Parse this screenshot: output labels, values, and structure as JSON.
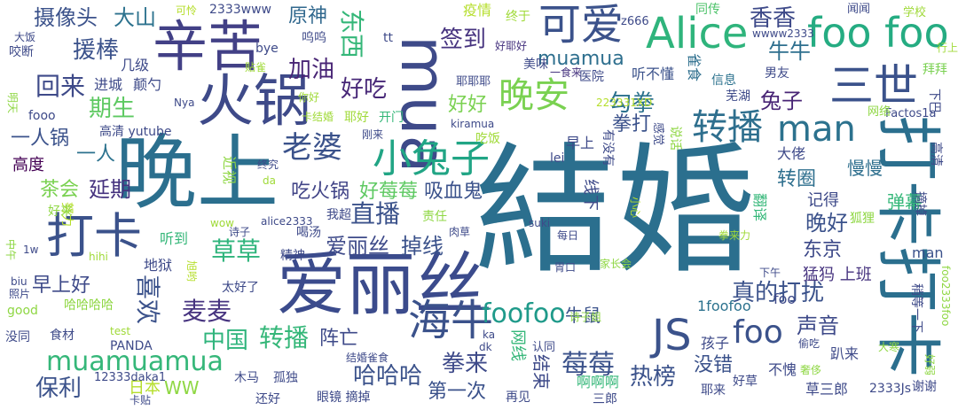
{
  "cloud": {
    "words": [
      {
        "text": "結婚",
        "color": "#2b6f8e",
        "rot": 0
      },
      {
        "text": "晚上",
        "color": "#2b6f8e",
        "rot": 0
      },
      {
        "text": "打卡打卡",
        "color": "#2b6f8e",
        "rot": 90
      },
      {
        "text": "爱丽丝",
        "color": "#3b4b8c",
        "rot": 0
      },
      {
        "text": "火锅",
        "color": "#3e4a89",
        "rot": 0
      },
      {
        "text": "辛苦",
        "color": "#424086",
        "rot": 0
      },
      {
        "text": "mua",
        "color": "#3e4a89",
        "rot": 90
      },
      {
        "text": "可爱",
        "color": "#3b528b",
        "rot": 0
      },
      {
        "text": "Alice",
        "color": "#2fb47c",
        "rot": 0
      },
      {
        "text": "foo foo",
        "color": "#25ac82",
        "rot": 0
      },
      {
        "text": "三世",
        "color": "#3b528b",
        "rot": 0
      },
      {
        "text": "打卡",
        "color": "#3b528b",
        "rot": 0
      },
      {
        "text": "晚安",
        "color": "#7ad151",
        "rot": 0
      },
      {
        "text": "转播",
        "color": "#2e6f8e",
        "rot": 0
      },
      {
        "text": "man",
        "color": "#2c728e",
        "rot": 0
      },
      {
        "text": "海牛",
        "color": "#3b528b",
        "rot": 0
      },
      {
        "text": "JS",
        "color": "#3b528b",
        "rot": 0
      },
      {
        "text": "小兔子",
        "color": "#21a585",
        "rot": 0
      },
      {
        "text": "老婆",
        "color": "#3b528b",
        "rot": 0
      },
      {
        "text": "foofoo",
        "color": "#1f9a8a",
        "rot": 0
      },
      {
        "text": "foo",
        "color": "#3b528b",
        "rot": 0
      },
      {
        "text": "muamuamua",
        "color": "#35b779",
        "rot": 0
      },
      {
        "text": "香香",
        "color": "#3e4a89",
        "rot": 0
      },
      {
        "text": "签到",
        "color": "#46337f",
        "rot": 0
      },
      {
        "text": "muamua",
        "color": "#2e6f8e",
        "rot": 0
      },
      {
        "text": "加油",
        "color": "#482475",
        "rot": 0
      },
      {
        "text": "东西",
        "color": "#35b779",
        "rot": 90
      },
      {
        "text": "好吃",
        "color": "#482878",
        "rot": 0
      },
      {
        "text": "回来",
        "color": "#3e4a89",
        "rot": 0
      },
      {
        "text": "援棒",
        "color": "#3b528b",
        "rot": 0
      },
      {
        "text": "摄像头",
        "color": "#3b528b",
        "rot": 0
      },
      {
        "text": "大山",
        "color": "#2c728e",
        "rot": 0
      },
      {
        "text": "原神",
        "color": "#31688e",
        "rot": 0
      },
      {
        "text": "期生",
        "color": "#5ec962",
        "rot": 0
      },
      {
        "text": "勾拳",
        "color": "#2c728e",
        "rot": 0
      },
      {
        "text": "牛牛",
        "color": "#2e6f8e",
        "rot": 0
      },
      {
        "text": "兔子",
        "color": "#482475",
        "rot": 0
      },
      {
        "text": "拳打",
        "color": "#3b528b",
        "rot": 0
      },
      {
        "text": "好好",
        "color": "#7ad151",
        "rot": 0
      },
      {
        "text": "直播",
        "color": "#3b528b",
        "rot": 0
      },
      {
        "text": "吃火锅",
        "color": "#414487",
        "rot": 0
      },
      {
        "text": "好莓莓",
        "color": "#5ec962",
        "rot": 0
      },
      {
        "text": "吸血鬼",
        "color": "#3b528b",
        "rot": 0
      },
      {
        "text": "延期",
        "color": "#46337f",
        "rot": 0
      },
      {
        "text": "茶会",
        "color": "#7ad151",
        "rot": 0
      },
      {
        "text": "一人锅",
        "color": "#3b528b",
        "rot": 0
      },
      {
        "text": "一人",
        "color": "#2c728e",
        "rot": 0
      },
      {
        "text": "高度",
        "color": "#440154",
        "rot": 0
      },
      {
        "text": "草草",
        "color": "#2fb47c",
        "rot": 0
      },
      {
        "text": "爱丽丝",
        "color": "#3e4a89",
        "rot": 0
      },
      {
        "text": "掉线",
        "color": "#3b528b",
        "rot": 0
      },
      {
        "text": "早上好",
        "color": "#3e4a89",
        "rot": 0
      },
      {
        "text": "喜欢",
        "color": "#3b528b",
        "rot": 90
      },
      {
        "text": "麦麦",
        "color": "#46337f",
        "rot": 0
      },
      {
        "text": "中国",
        "color": "#2fb47c",
        "rot": 0
      },
      {
        "text": "转播",
        "color": "#35b779",
        "rot": 0
      },
      {
        "text": "阵亡",
        "color": "#3e4a89",
        "rot": 0
      },
      {
        "text": "保利",
        "color": "#3b528b",
        "rot": 0
      },
      {
        "text": "WW",
        "color": "#8fd744",
        "rot": 0
      },
      {
        "text": "日本",
        "color": "#b5de2b",
        "rot": 0
      },
      {
        "text": "哈哈哈",
        "color": "#3b528b",
        "rot": 0
      },
      {
        "text": "拳来",
        "color": "#3e4a89",
        "rot": 0
      },
      {
        "text": "莓莓",
        "color": "#3b528b",
        "rot": 0
      },
      {
        "text": "牛鼠",
        "color": "#3b528b",
        "rot": 0
      },
      {
        "text": "真的打扰",
        "color": "#3b528b",
        "rot": 0
      },
      {
        "text": "声音",
        "color": "#3e4a89",
        "rot": 0
      },
      {
        "text": "转圈",
        "color": "#2e6f8e",
        "rot": 0
      },
      {
        "text": "晚好",
        "color": "#3b528b",
        "rot": 0
      },
      {
        "text": "东京",
        "color": "#3e4a89",
        "rot": 0
      },
      {
        "text": "热榜",
        "color": "#3b528b",
        "rot": 0
      },
      {
        "text": "第一次",
        "color": "#3b528b",
        "rot": 0
      },
      {
        "text": "没错",
        "color": "#3b528b",
        "rot": 0
      },
      {
        "text": "弹幕",
        "color": "#35b779",
        "rot": 0
      },
      {
        "text": "记得",
        "color": "#3e4a89",
        "rot": 0
      },
      {
        "text": "慢慢",
        "color": "#2e6f8e",
        "rot": 0
      },
      {
        "text": "猛犸 上班",
        "color": "#46337f",
        "rot": 0
      },
      {
        "text": "man",
        "color": "#3b528b",
        "rot": 0
      },
      {
        "text": "foo",
        "color": "#3e4a89",
        "rot": 0
      },
      {
        "text": "1foofoo",
        "color": "#2c728e",
        "rot": 0
      },
      {
        "text": "2333www",
        "color": "#3e4a89",
        "rot": 0
      },
      {
        "text": "疫情",
        "color": "#b5de2b",
        "rot": 0
      },
      {
        "text": "终于",
        "color": "#a0da39",
        "rot": 0
      },
      {
        "text": "同传",
        "color": "#4ec36b",
        "rot": 0
      },
      {
        "text": "闻闻",
        "color": "#3e4a89",
        "rot": 0
      },
      {
        "text": "学校",
        "color": "#a0da39",
        "rot": 0
      },
      {
        "text": "z666",
        "color": "#3e4a89",
        "rot": 0
      },
      {
        "text": "wwww2333",
        "color": "#3e4a89",
        "rot": 0
      },
      {
        "text": "可怜",
        "color": "#b5de2b",
        "rot": 0
      },
      {
        "text": "好耶好",
        "color": "#46337f",
        "rot": 0
      },
      {
        "text": "听不懂",
        "color": "#3b528b",
        "rot": 0
      },
      {
        "text": "信息",
        "color": "#2c728e",
        "rot": 0
      },
      {
        "text": "雀食",
        "color": "#2e6f8e",
        "rot": 90
      },
      {
        "text": "男友",
        "color": "#3e4a89",
        "rot": 0
      },
      {
        "text": "拜拜",
        "color": "#7ad151",
        "rot": 0
      },
      {
        "text": "芜湖",
        "color": "#3e4a89",
        "rot": 0
      },
      {
        "text": "行上",
        "color": "#a0da39",
        "rot": 0
      },
      {
        "text": "下巴",
        "color": "#3e4a89",
        "rot": 90
      },
      {
        "text": "Factos1a",
        "color": "#3e4a89",
        "rot": 0
      },
      {
        "text": "网络",
        "color": "#8fd744",
        "rot": 0
      },
      {
        "text": "美味",
        "color": "#3e4a89",
        "rot": 0
      },
      {
        "text": "一食来",
        "color": "#46337f",
        "rot": 0
      },
      {
        "text": "医院",
        "color": "#3e4a89",
        "rot": 0
      },
      {
        "text": "耶耶耶",
        "color": "#3e4a89",
        "rot": 0
      },
      {
        "text": "bye",
        "color": "#3e4a89",
        "rot": 0
      },
      {
        "text": "呜呜",
        "color": "#3e4a89",
        "rot": 0
      },
      {
        "text": "tt",
        "color": "#3e4a89",
        "rot": 0
      },
      {
        "text": "几级",
        "color": "#3e4a89",
        "rot": 0
      },
      {
        "text": "进城",
        "color": "#3e4a89",
        "rot": 0
      },
      {
        "text": "颠勺",
        "color": "#3e4a89",
        "rot": 0
      },
      {
        "text": "贴雀",
        "color": "#a0da39",
        "rot": 0
      },
      {
        "text": "你好",
        "color": "#a0da39",
        "rot": 0
      },
      {
        "text": "Nya",
        "color": "#3e4a89",
        "rot": 0
      },
      {
        "text": "223331XD",
        "color": "#b5de2b",
        "rot": 0
      },
      {
        "text": "大饭",
        "color": "#3e4a89",
        "rot": 0
      },
      {
        "text": "咬断",
        "color": "#3e4a89",
        "rot": 0
      },
      {
        "text": "明天",
        "color": "#8fd744",
        "rot": 90
      },
      {
        "text": "fooo",
        "color": "#3e4a89",
        "rot": 0
      },
      {
        "text": "高清 yutube",
        "color": "#3e4a89",
        "rot": 0
      },
      {
        "text": "卡结婚",
        "color": "#a0da39",
        "rot": 0
      },
      {
        "text": "耶好",
        "color": "#a0da39",
        "rot": 0
      },
      {
        "text": "开门",
        "color": "#35b779",
        "rot": 0
      },
      {
        "text": "kiramua",
        "color": "#3e4a89",
        "rot": 0
      },
      {
        "text": "刚来",
        "color": "#3e4a89",
        "rot": 0
      },
      {
        "text": "吃饭",
        "color": "#a0da39",
        "rot": 0
      },
      {
        "text": "有没有",
        "color": "#3e4a89",
        "rot": 90
      },
      {
        "text": "早上",
        "color": "#3e4a89",
        "rot": 0
      },
      {
        "text": "感觉",
        "color": "#3e4a89",
        "rot": 90
      },
      {
        "text": "说话",
        "color": "#8fd744",
        "rot": 90
      },
      {
        "text": "大佬",
        "color": "#3e4a89",
        "rot": 0
      },
      {
        "text": "狐狸",
        "color": "#8fd744",
        "rot": 0
      },
      {
        "text": "高清",
        "color": "#3e4a89",
        "rot": 90
      },
      {
        "text": "摘掉",
        "color": "#3e4a89",
        "rot": 90
      },
      {
        "text": "终究",
        "color": "#3e4a89",
        "rot": 0
      },
      {
        "text": "近视",
        "color": "#8fd744",
        "rot": 90
      },
      {
        "text": "da",
        "color": "#a0da39",
        "rot": 0
      },
      {
        "text": "lei",
        "color": "#3e4a89",
        "rot": 0
      },
      {
        "text": "线下",
        "color": "#3e4a89",
        "rot": 90
      },
      {
        "text": "努力",
        "color": "#b5de2b",
        "rot": 90
      },
      {
        "text": "好来",
        "color": "#8fd744",
        "rot": 0
      },
      {
        "text": "wow",
        "color": "#a0da39",
        "rot": 0
      },
      {
        "text": "alice2333",
        "color": "#3e4a89",
        "rot": 0
      },
      {
        "text": "我超",
        "color": "#3e4a89",
        "rot": 0
      },
      {
        "text": "责任",
        "color": "#8fd744",
        "rot": 0
      },
      {
        "text": "suki",
        "color": "#3e4a89",
        "rot": 0
      },
      {
        "text": "小心",
        "color": "#b5de2b",
        "rot": 90
      },
      {
        "text": "翻译",
        "color": "#35b779",
        "rot": 90
      },
      {
        "text": "诗子",
        "color": "#3e4a89",
        "rot": 0
      },
      {
        "text": "喝汤",
        "color": "#3e4a89",
        "rot": 0
      },
      {
        "text": "肉草",
        "color": "#3e4a89",
        "rot": 0
      },
      {
        "text": "每日",
        "color": "#3e4a89",
        "rot": 0
      },
      {
        "text": "拳来力",
        "color": "#a0da39",
        "rot": 0
      },
      {
        "text": "听到",
        "color": "#35b779",
        "rot": 0
      },
      {
        "text": "中午",
        "color": "#8fd744",
        "rot": 90
      },
      {
        "text": "1w",
        "color": "#3e4a89",
        "rot": 0
      },
      {
        "text": "hihi",
        "color": "#a0da39",
        "rot": 0
      },
      {
        "text": "地狱",
        "color": "#3e4a89",
        "rot": 0
      },
      {
        "text": "旭哟",
        "color": "#b5de2b",
        "rot": 90
      },
      {
        "text": "精神",
        "color": "#3e4a89",
        "rot": 0
      },
      {
        "text": "胃口",
        "color": "#3e4a89",
        "rot": 0
      },
      {
        "text": "家长会",
        "color": "#8fd744",
        "rot": 0
      },
      {
        "text": "下午",
        "color": "#3e4a89",
        "rot": 0
      },
      {
        "text": "biu",
        "color": "#3e4a89",
        "rot": 0
      },
      {
        "text": "照片",
        "color": "#3e4a89",
        "rot": 0
      },
      {
        "text": "太好了",
        "color": "#3e4a89",
        "rot": 0
      },
      {
        "text": "foo2333foo",
        "color": "#8fd744",
        "rot": 90
      },
      {
        "text": "哈哈哈哈",
        "color": "#8fd744",
        "rot": 0
      },
      {
        "text": "good",
        "color": "#8fd744",
        "rot": 0
      },
      {
        "text": "诗子姐",
        "color": "#8fd744",
        "rot": 0
      },
      {
        "text": "稍等一下",
        "color": "#3e4a89",
        "rot": 90
      },
      {
        "text": "没同",
        "color": "#3e4a89",
        "rot": 0
      },
      {
        "text": "食材",
        "color": "#3e4a89",
        "rot": 0
      },
      {
        "text": "test",
        "color": "#a0da39",
        "rot": 0
      },
      {
        "text": "PANDA",
        "color": "#3e4a89",
        "rot": 0
      },
      {
        "text": "12333daka1",
        "color": "#3e4a89",
        "rot": 0
      },
      {
        "text": "ka",
        "color": "#3e4a89",
        "rot": 0
      },
      {
        "text": "dk",
        "color": "#3e4a89",
        "rot": 0
      },
      {
        "text": "结婚雀食",
        "color": "#3e4a89",
        "rot": 0
      },
      {
        "text": "认同",
        "color": "#3e4a89",
        "rot": 0
      },
      {
        "text": "偷吃",
        "color": "#3e4a89",
        "rot": 0
      },
      {
        "text": "大寒",
        "color": "#8fd744",
        "rot": 0
      },
      {
        "text": "趴来",
        "color": "#3e4a89",
        "rot": 0
      },
      {
        "text": "孩子",
        "color": "#3e4a89",
        "rot": 0
      },
      {
        "text": "奢侈",
        "color": "#8fd744",
        "rot": 0
      },
      {
        "text": "好弱",
        "color": "#8fd744",
        "rot": 90
      },
      {
        "text": "木马",
        "color": "#3e4a89",
        "rot": 0
      },
      {
        "text": "孤独",
        "color": "#3e4a89",
        "rot": 0
      },
      {
        "text": "不愧",
        "color": "#3e4a89",
        "rot": 0
      },
      {
        "text": "耶来",
        "color": "#3e4a89",
        "rot": 0
      },
      {
        "text": "好草",
        "color": "#3e4a89",
        "rot": 0
      },
      {
        "text": "草三郎",
        "color": "#3e4a89",
        "rot": 0
      },
      {
        "text": "2333Js",
        "color": "#3e4a89",
        "rot": 0
      },
      {
        "text": "谢谢",
        "color": "#3e4a89",
        "rot": 0
      },
      {
        "text": "卡贴",
        "color": "#3e4a89",
        "rot": 0
      },
      {
        "text": "还好",
        "color": "#3e4a89",
        "rot": 0
      },
      {
        "text": "眼镜 摘掉",
        "color": "#3e4a89",
        "rot": 0
      },
      {
        "text": "再见",
        "color": "#3e4a89",
        "rot": 0
      },
      {
        "text": "三郎",
        "color": "#3e4a89",
        "rot": 0
      },
      {
        "text": "网线",
        "color": "#35b779",
        "rot": 90
      },
      {
        "text": "结束",
        "color": "#3e4a89",
        "rot": 90
      },
      {
        "text": "啊啊啊",
        "color": "#35b779",
        "rot": 0
      }
    ]
  }
}
